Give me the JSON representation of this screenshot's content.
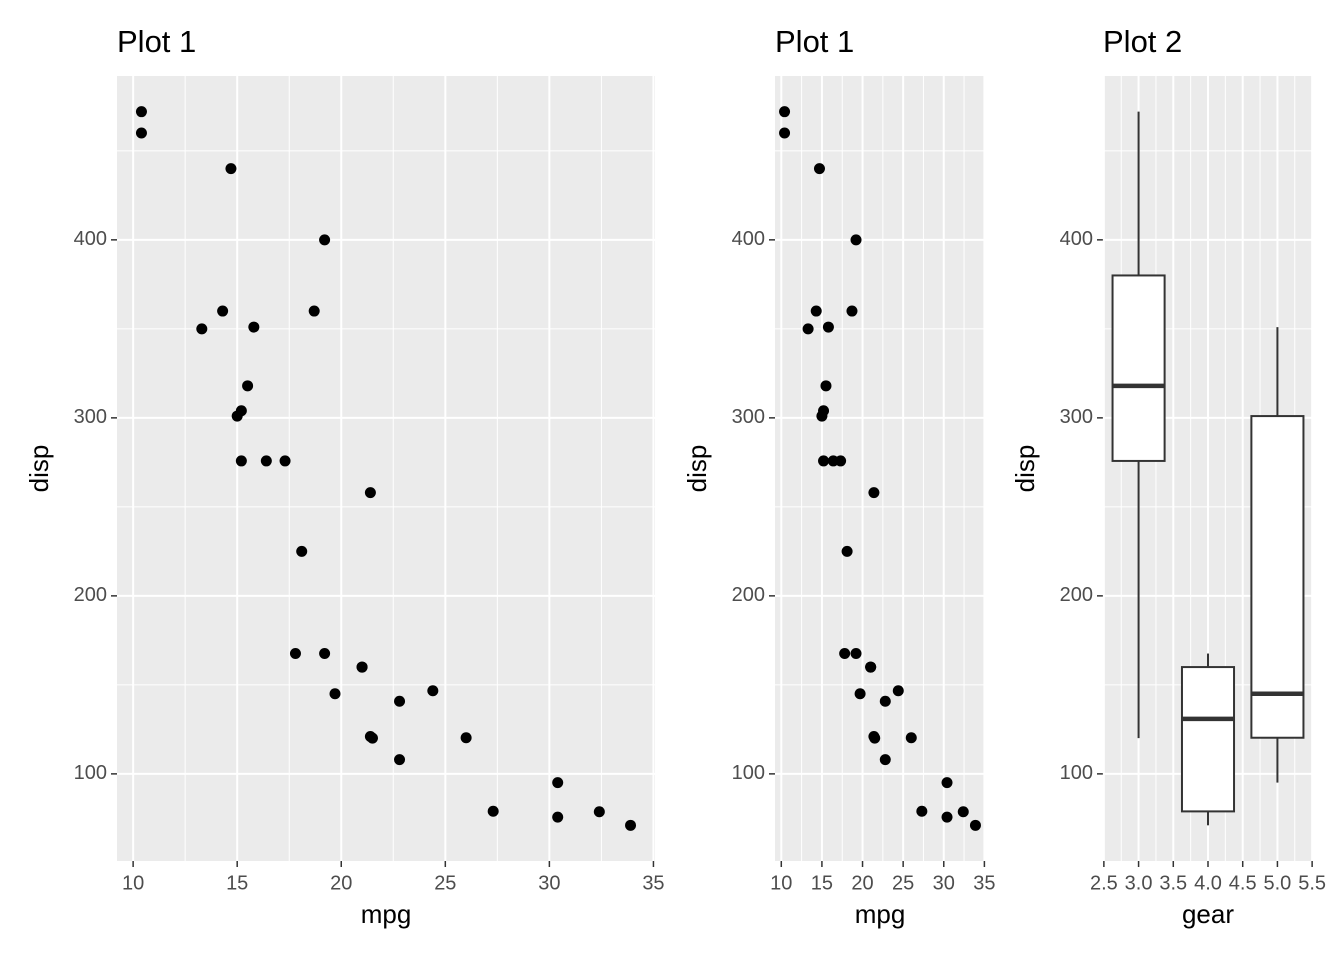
{
  "chart_data": [
    {
      "type": "scatter",
      "title": "Plot 1",
      "xlabel": "mpg",
      "ylabel": "disp",
      "color": "#000000",
      "grid": true,
      "x": [
        21.0,
        21.0,
        22.8,
        21.4,
        18.7,
        18.1,
        14.3,
        24.4,
        22.8,
        19.2,
        17.8,
        16.4,
        17.3,
        15.2,
        10.4,
        10.4,
        14.7,
        32.4,
        30.4,
        33.9,
        21.5,
        15.5,
        15.2,
        13.3,
        19.2,
        27.3,
        26.0,
        30.4,
        15.8,
        19.7,
        15.0,
        21.4
      ],
      "y": [
        160,
        160,
        108,
        258,
        360,
        225,
        360,
        146.7,
        140.8,
        167.6,
        167.6,
        275.8,
        275.8,
        275.8,
        472,
        460,
        440,
        78.7,
        75.7,
        71.1,
        120.1,
        318,
        304,
        350,
        400,
        79,
        120.3,
        95.1,
        351,
        145,
        301,
        121
      ],
      "xlim": [
        9.225,
        35.075
      ],
      "xticks": [
        10,
        15,
        20,
        25,
        30,
        35
      ],
      "ylim": [
        51.055,
        492.045
      ],
      "yticks": [
        100,
        200,
        300,
        400
      ]
    },
    {
      "type": "scatter",
      "title": "Plot 1",
      "xlabel": "mpg",
      "ylabel": "disp",
      "color": "#000000",
      "grid": true,
      "x": [
        21.0,
        21.0,
        22.8,
        21.4,
        18.7,
        18.1,
        14.3,
        24.4,
        22.8,
        19.2,
        17.8,
        16.4,
        17.3,
        15.2,
        10.4,
        10.4,
        14.7,
        32.4,
        30.4,
        33.9,
        21.5,
        15.5,
        15.2,
        13.3,
        19.2,
        27.3,
        26.0,
        30.4,
        15.8,
        19.7,
        15.0,
        21.4
      ],
      "y": [
        160,
        160,
        108,
        258,
        360,
        225,
        360,
        146.7,
        140.8,
        167.6,
        167.6,
        275.8,
        275.8,
        275.8,
        472,
        460,
        440,
        78.7,
        75.7,
        71.1,
        120.1,
        318,
        304,
        350,
        400,
        79,
        120.3,
        95.1,
        351,
        145,
        301,
        121
      ],
      "xlim": [
        9.225,
        35.075
      ],
      "xticks": [
        10,
        15,
        20,
        25,
        30,
        35
      ],
      "ylim": [
        51.055,
        492.045
      ],
      "yticks": [
        100,
        200,
        300,
        400
      ]
    },
    {
      "type": "box",
      "title": "Plot 2",
      "xlabel": "gear",
      "ylabel": "disp",
      "color": "#333333",
      "grid": true,
      "x": [
        3,
        4,
        5
      ],
      "whisker_low": [
        120.1,
        71.1,
        95.1
      ],
      "q1": [
        275.8,
        78.925,
        120.3
      ],
      "median": [
        318,
        130.9,
        145
      ],
      "q3": [
        380,
        160,
        301
      ],
      "whisker_high": [
        472,
        167.6,
        351
      ],
      "xlim": [
        2.4875,
        5.5125
      ],
      "xticks": [
        2.5,
        {
          "value": 3,
          "label": "3.0"
        },
        3.5,
        {
          "value": 4,
          "label": "4.0"
        },
        4.5,
        {
          "value": 5,
          "label": "5.0"
        },
        5.5
      ],
      "ylim": [
        51.055,
        492.045
      ],
      "yticks": [
        100,
        200,
        300,
        400
      ]
    }
  ]
}
